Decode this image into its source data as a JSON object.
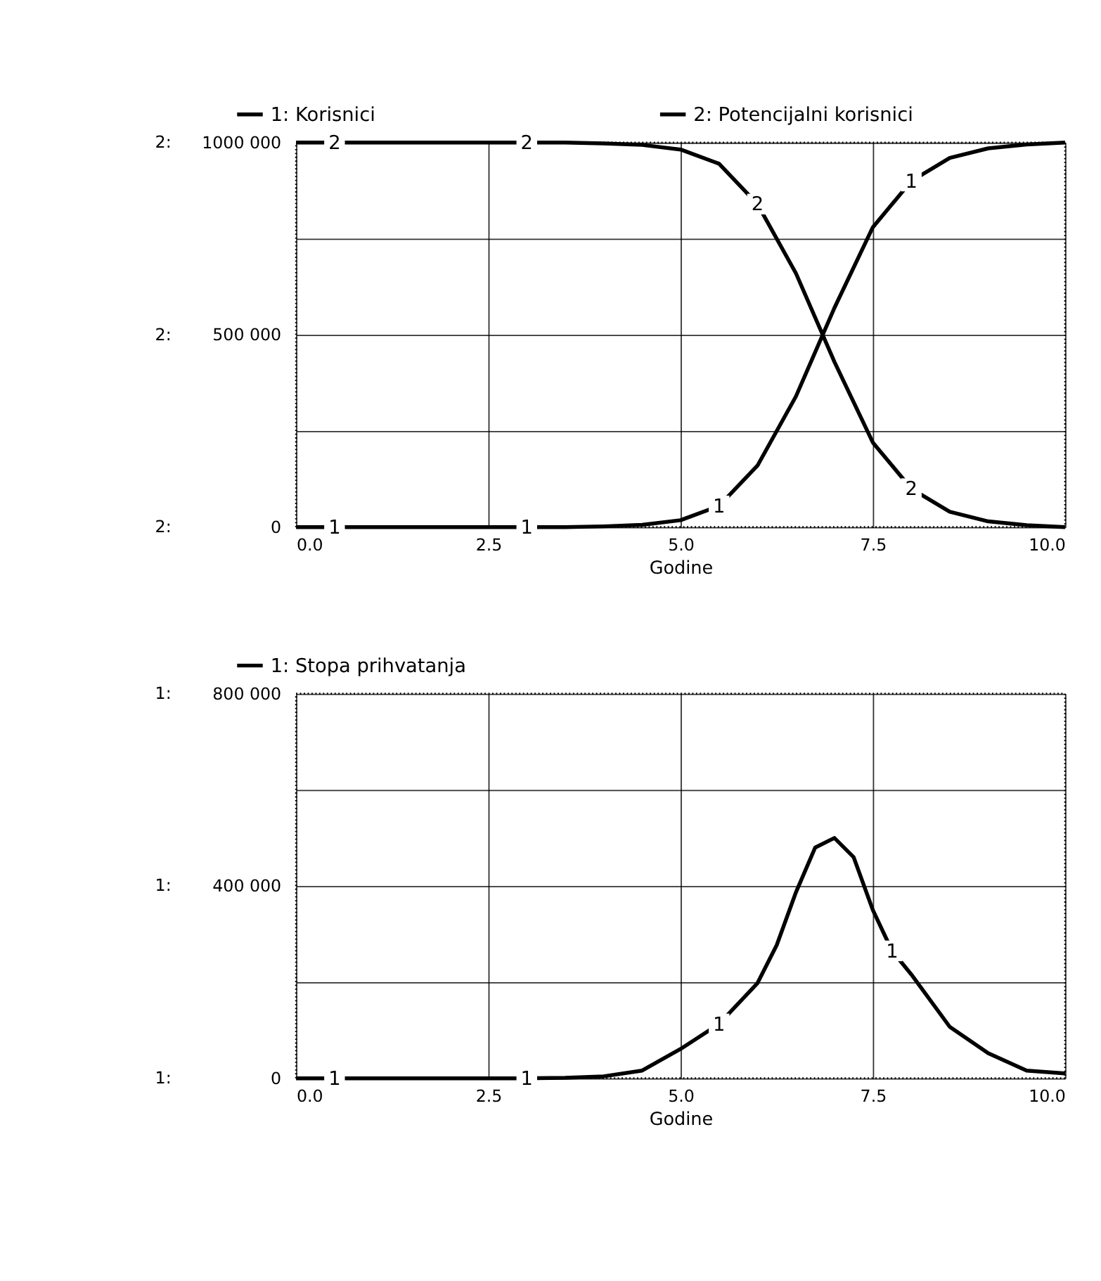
{
  "chart_data": [
    {
      "type": "line",
      "xlabel": "Godine",
      "legend": "top",
      "grid": true,
      "marker": "none",
      "line_style": "solid",
      "x": [
        0,
        0.5,
        1,
        1.5,
        2,
        2.5,
        3,
        3.5,
        4,
        4.5,
        5,
        5.5,
        6,
        6.5,
        7,
        7.5,
        8,
        8.5,
        9,
        9.5,
        10
      ],
      "series": [
        {
          "name": "1: Korisnici",
          "color": "#000000",
          "values": [
            0,
            0,
            0,
            0,
            0,
            0,
            0,
            0,
            2000,
            6000,
            18000,
            55000,
            160000,
            340000,
            570000,
            780000,
            900000,
            960000,
            985000,
            995000,
            1000000
          ]
        },
        {
          "name": "2: Potencijalni korisnici",
          "color": "#000000",
          "values": [
            1000000,
            1000000,
            1000000,
            1000000,
            1000000,
            1000000,
            1000000,
            1000000,
            998000,
            994000,
            982000,
            945000,
            840000,
            660000,
            430000,
            220000,
            100000,
            40000,
            15000,
            5000,
            0
          ]
        }
      ],
      "xlim": [
        0,
        10
      ],
      "xticks": [
        {
          "value": 0,
          "label": "0.0"
        },
        {
          "value": 2.5,
          "label": "2.5"
        },
        {
          "value": 5,
          "label": "5.0"
        },
        {
          "value": 7.5,
          "label": "7.5"
        },
        {
          "value": 10,
          "label": "10.0"
        }
      ],
      "ylim": [
        0,
        1000000
      ],
      "yticks": [
        {
          "value": 0,
          "label": "0"
        },
        {
          "value": 250000,
          "label": null
        },
        {
          "value": 500000,
          "label": "500 000"
        },
        {
          "value": 750000,
          "label": null
        },
        {
          "value": 1000000,
          "label": "1000 000"
        }
      ],
      "annotations": [
        {
          "text": "2",
          "x": 0.5,
          "y": 1000000
        },
        {
          "text": "2",
          "x": 3,
          "y": 1000000
        },
        {
          "text": "2",
          "x": 6,
          "y": 840000
        },
        {
          "text": "2",
          "x": 8,
          "y": 100000
        },
        {
          "text": "1",
          "x": 0.5,
          "y": 0
        },
        {
          "text": "1",
          "x": 3,
          "y": 0
        },
        {
          "text": "1",
          "x": 5.5,
          "y": 55000
        },
        {
          "text": "1",
          "x": 8,
          "y": 900000
        },
        "2:",
        "2:",
        "2:"
      ]
    },
    {
      "type": "line",
      "xlabel": "Godine",
      "legend": "top",
      "grid": true,
      "marker": "none",
      "line_style": "solid",
      "x": [
        0,
        0.5,
        1,
        1.5,
        2,
        2.5,
        3,
        3.5,
        4,
        4.5,
        5,
        5.5,
        6,
        6.25,
        6.5,
        6.75,
        7,
        7.25,
        7.5,
        7.75,
        8,
        8.5,
        9,
        9.5,
        10
      ],
      "series": [
        {
          "name": "1: Stopa prihvatanja",
          "color": "#000000",
          "values": [
            0,
            0,
            0,
            0,
            0,
            0,
            0,
            1000,
            4000,
            16000,
            61000,
            113000,
            198000,
            277000,
            387000,
            480000,
            500000,
            460000,
            350000,
            265000,
            216000,
            107000,
            52000,
            16000,
            10000
          ]
        }
      ],
      "xlim": [
        0,
        10
      ],
      "xticks": [
        {
          "value": 0,
          "label": "0.0"
        },
        {
          "value": 2.5,
          "label": "2.5"
        },
        {
          "value": 5,
          "label": "5.0"
        },
        {
          "value": 7.5,
          "label": "7.5"
        },
        {
          "value": 10,
          "label": "10.0"
        }
      ],
      "ylim": [
        0,
        800000
      ],
      "yticks": [
        {
          "value": 0,
          "label": "0"
        },
        {
          "value": 200000,
          "label": null
        },
        {
          "value": 400000,
          "label": "400 000"
        },
        {
          "value": 600000,
          "label": null
        },
        {
          "value": 800000,
          "label": "800 000"
        }
      ],
      "annotations": [
        {
          "text": "1",
          "x": 0.5,
          "y": 0
        },
        {
          "text": "1",
          "x": 3,
          "y": 0
        },
        {
          "text": "1",
          "x": 5.5,
          "y": 113000
        },
        {
          "text": "1",
          "x": 7.75,
          "y": 265000
        },
        "1:",
        "1:",
        "1:"
      ]
    }
  ]
}
